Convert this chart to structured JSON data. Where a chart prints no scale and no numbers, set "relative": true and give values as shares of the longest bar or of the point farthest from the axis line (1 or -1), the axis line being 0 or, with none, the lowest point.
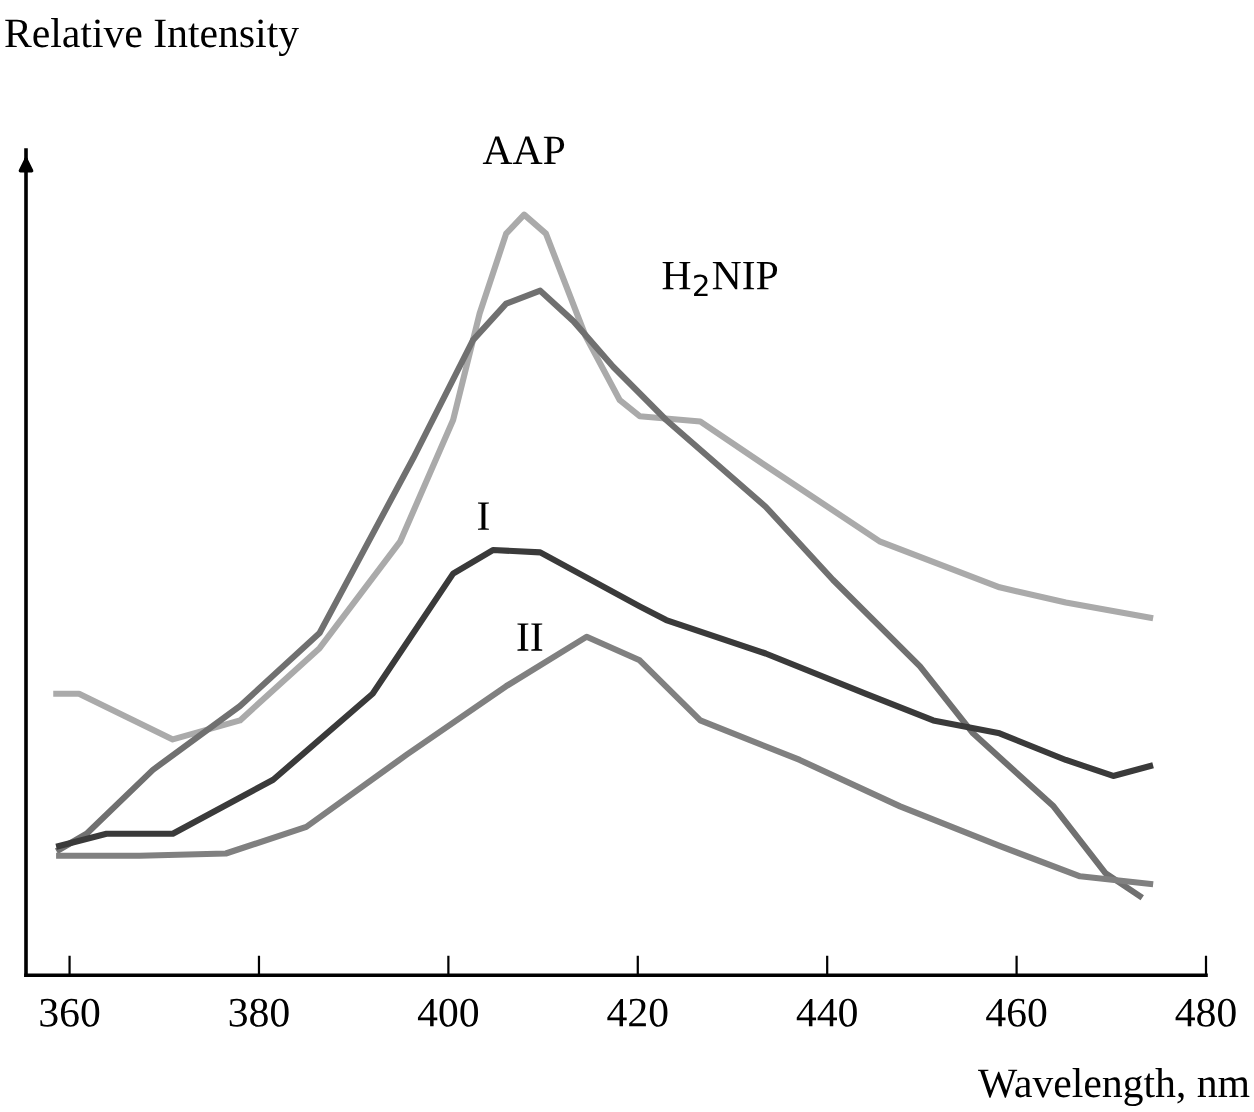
{
  "chart_data": {
    "type": "line",
    "relative": true,
    "xlabel": "Wavelength, nm",
    "ylabel": "Relative Intensity",
    "xlim": [
      355.4,
      480
    ],
    "xticks": [
      360,
      380,
      400,
      420,
      440,
      460,
      480
    ],
    "grid": false,
    "legend": false,
    "marker": "none",
    "line_style": "solid",
    "series": [
      {
        "name": "AAP",
        "color": "#aaaaaa",
        "x": [
          358.6,
          361,
          370.9,
          378,
          386.4,
          394.9,
          400.5,
          403.3,
          406.1,
          408,
          410.3,
          414.5,
          418.1,
          420.2,
          426.6,
          433.5,
          445.6,
          458.2,
          465.2,
          474.1
        ],
        "values": [
          0.37,
          0.37,
          0.31,
          0.335,
          0.43,
          0.57,
          0.73,
          0.87,
          0.975,
          1,
          0.975,
          0.84,
          0.756,
          0.735,
          0.728,
          0.67,
          0.57,
          0.51,
          0.49,
          0.47
        ]
      },
      {
        "name": "H$_{2}$NIP",
        "color": "#707070",
        "x": [
          358.9,
          361.8,
          368.8,
          378,
          386.4,
          396.3,
          402.6,
          406.1,
          409.7,
          413.2,
          417.4,
          423,
          433.5,
          440.6,
          449.8,
          455.4,
          463.9,
          469.4,
          473
        ],
        "values": [
          0.165,
          0.186,
          0.27,
          0.354,
          0.45,
          0.68,
          0.835,
          0.883,
          0.9,
          0.86,
          0.8,
          0.73,
          0.616,
          0.52,
          0.406,
          0.318,
          0.222,
          0.134,
          0.104
        ]
      },
      {
        "name": "I",
        "color": "#3a3a3a",
        "x": [
          358.9,
          363.9,
          370.9,
          381.5,
          392,
          400.5,
          404.7,
          409.7,
          420.2,
          423,
          433.5,
          444.1,
          451.2,
          458.2,
          465.2,
          470.2,
          474.1
        ],
        "values": [
          0.17,
          0.186,
          0.186,
          0.257,
          0.37,
          0.528,
          0.559,
          0.556,
          0.485,
          0.467,
          0.423,
          0.37,
          0.335,
          0.318,
          0.283,
          0.262,
          0.275
        ]
      },
      {
        "name": "II",
        "color": "#808080",
        "x": [
          358.9,
          367.4,
          376.5,
          385,
          395.6,
          406.1,
          414.6,
          420.2,
          426.6,
          437.1,
          447.7,
          458.2,
          466.7,
          474.1
        ],
        "values": [
          0.157,
          0.157,
          0.16,
          0.195,
          0.29,
          0.38,
          0.445,
          0.414,
          0.335,
          0.283,
          0.222,
          0.17,
          0.13,
          0.12
        ]
      }
    ]
  }
}
